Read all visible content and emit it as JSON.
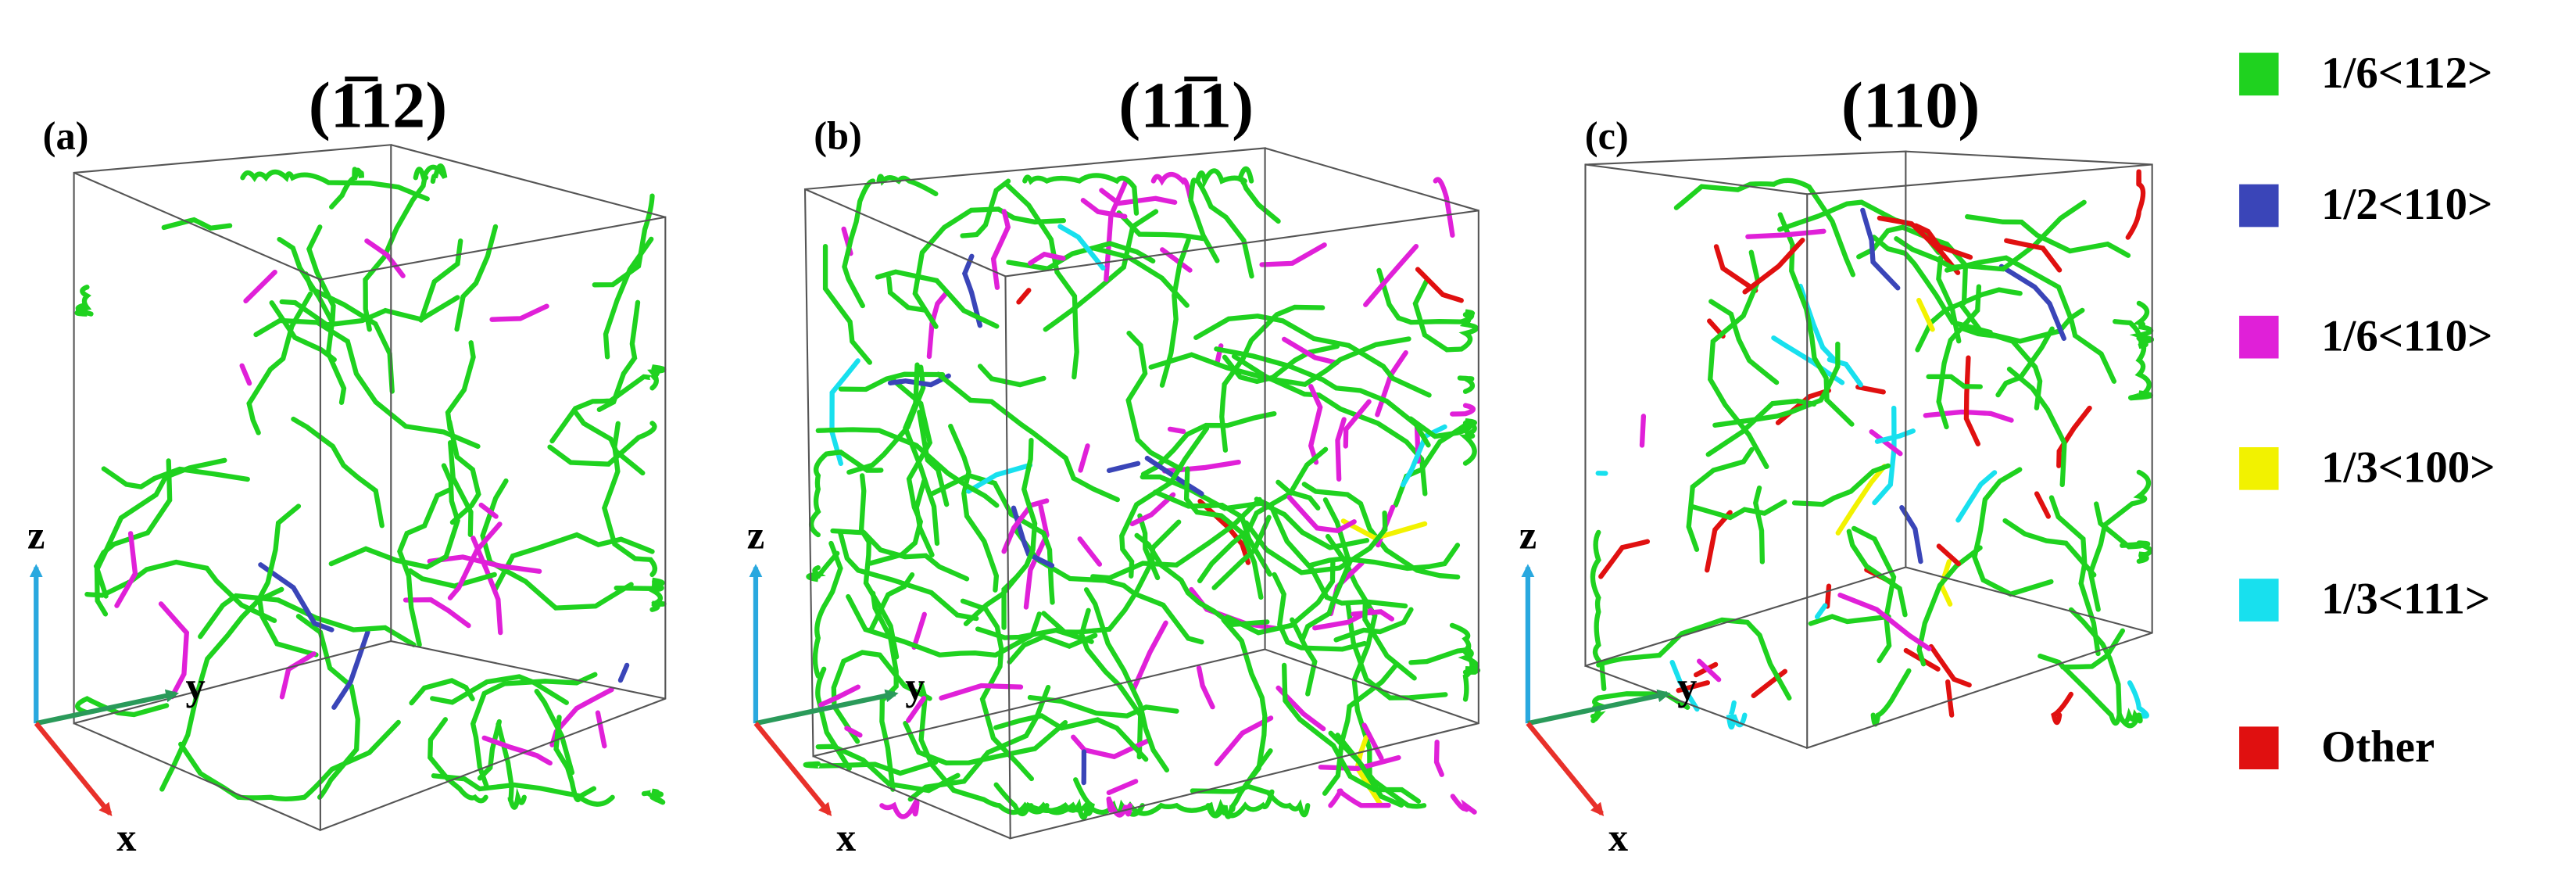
{
  "panels": [
    {
      "label": "(a)",
      "title": "(1̅12)",
      "axes": {
        "z": "z",
        "y": "y",
        "x": "x"
      }
    },
    {
      "label": "(b)",
      "title": "(11̅1)",
      "axes": {
        "z": "z",
        "y": "y",
        "x": "x"
      }
    },
    {
      "label": "(c)",
      "title": "(110)",
      "axes": {
        "z": "z",
        "y": "y",
        "x": "x"
      }
    }
  ],
  "legend": [
    {
      "label": "1/6<112>",
      "color": "#1fd21f"
    },
    {
      "label": "1/2<110>",
      "color": "#3a45b8"
    },
    {
      "label": "1/6<110>",
      "color": "#e020d8"
    },
    {
      "label": "1/3<100>",
      "color": "#f2f200"
    },
    {
      "label": "1/3<111>",
      "color": "#18e0ee"
    },
    {
      "label": "Other",
      "color": "#e01010"
    }
  ]
}
